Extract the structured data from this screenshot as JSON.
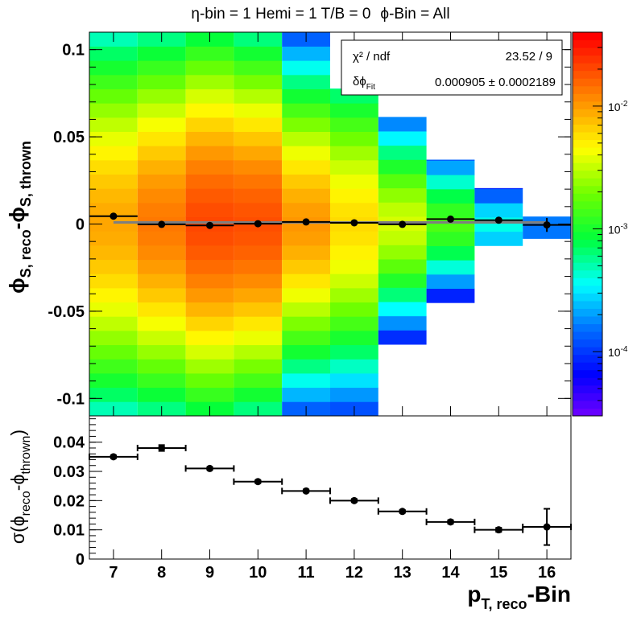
{
  "title": {
    "prefix_eta": "η",
    "text_mid": "-bin = 1 Hemi = 1 T/B = 0",
    "prefix_phi": "ϕ",
    "text_end": "-Bin = All"
  },
  "stats_box": {
    "chi2_label": "χ² / ndf",
    "chi2_value": "23.52 / 9",
    "dphi_label_main": "δϕ",
    "dphi_label_sub": "Fit",
    "dphi_value": "0.000905 ± 0.0002189"
  },
  "top_axis_label": {
    "a_main": "ϕ",
    "a_sub": "S, reco",
    "b_main": "-ϕ",
    "b_sub": "S, thrown"
  },
  "bottom_axis_label": {
    "main": "σ(ϕ",
    "sub1": "reco",
    "mid": "-ϕ",
    "sub2": "thrown",
    "end": ")"
  },
  "x_axis_label": {
    "main": "p",
    "sub": "T, reco",
    "end": "-Bin"
  },
  "chart_data": [
    {
      "type": "heatmap",
      "title": "η-bin = 1 Hemi = 1 T/B = 0  ϕ-Bin = All",
      "x_bins": [
        7,
        8,
        9,
        10,
        11,
        12,
        13,
        14,
        15,
        16
      ],
      "xlim": [
        6.5,
        16.5
      ],
      "ylim": [
        -0.11,
        0.11
      ],
      "yticks": [
        {
          "v": 0.1,
          "label": "0.1"
        },
        {
          "v": 0.05,
          "label": "0.05"
        },
        {
          "v": 0,
          "label": "0"
        },
        {
          "v": -0.05,
          "label": "-0.05"
        },
        {
          "v": -0.1,
          "label": "-0.1"
        }
      ],
      "y_bin_width": 0.00815,
      "z_scale": "log",
      "zlim": [
        3e-05,
        0.04
      ],
      "z_ticks": [
        {
          "v": 0.01,
          "label": "10",
          "exp": "-2"
        },
        {
          "v": 0.001,
          "label": "10",
          "exp": "-3"
        },
        {
          "v": 0.0001,
          "label": "10",
          "exp": "-4"
        }
      ],
      "columns": [
        {
          "x": 7,
          "y_range": [
            -0.11,
            0.11
          ],
          "z_peak": 0.0096,
          "z_min": 0.0004,
          "z_top_override": [
            0.0004,
            0.0002
          ]
        },
        {
          "x": 8,
          "y_range": [
            -0.11,
            0.11
          ],
          "z_peak": 0.0142,
          "z_min": 0.0005
        },
        {
          "x": 9,
          "y_range": [
            -0.11,
            0.11
          ],
          "z_peak": 0.0217,
          "z_min": 0.0007
        },
        {
          "x": 10,
          "y_range": [
            -0.11,
            0.11
          ],
          "z_peak": 0.0204,
          "z_min": 0.0005
        },
        {
          "x": 11,
          "y_range": [
            -0.11,
            0.11
          ],
          "z_peak": 0.011,
          "z_min": 0.0001
        },
        {
          "x": 12,
          "y_range": [
            -0.11,
            0.0777
          ],
          "z_peak": 0.0062,
          "z_min": 9e-05
        },
        {
          "x": 13,
          "y_range": [
            -0.069,
            0.0614
          ],
          "z_peak": 0.0036,
          "z_min": 6e-05
        },
        {
          "x": 14,
          "y_range": [
            -0.0451,
            0.0369
          ],
          "z_peak": 0.0015,
          "z_min": 5e-05
        },
        {
          "x": 15,
          "y_range": [
            -0.0124,
            0.0206
          ],
          "z_peak": 0.00038,
          "z_min": 8e-05
        },
        {
          "x": 16,
          "y_range": [
            -0.0083,
            0.0043
          ],
          "z_peak": 0.00016,
          "z_min": 0.00014
        }
      ],
      "profile_points": [
        {
          "x": 7,
          "y": 0.0045,
          "yerr": 0.0012
        },
        {
          "x": 8,
          "y": -0.0002,
          "yerr": 0.001
        },
        {
          "x": 9,
          "y": -0.0008,
          "yerr": 0.0008
        },
        {
          "x": 10,
          "y": 0.0002,
          "yerr": 0.0008
        },
        {
          "x": 11,
          "y": 0.0012,
          "yerr": 0.0008
        },
        {
          "x": 12,
          "y": 0.0007,
          "yerr": 0.0009
        },
        {
          "x": 13,
          "y": -0.0002,
          "yerr": 0.001
        },
        {
          "x": 14,
          "y": 0.0028,
          "yerr": 0.0012
        },
        {
          "x": 15,
          "y": 0.0022,
          "yerr": 0.0016
        },
        {
          "x": 16,
          "y": -0.0005,
          "yerr": 0.004
        }
      ],
      "fit_line": {
        "x": [
          7,
          16
        ],
        "y": 0.000905,
        "color": "#7f7f7f"
      }
    },
    {
      "type": "scatter",
      "xlim": [
        6.5,
        16.5
      ],
      "ylim": [
        0,
        0.049
      ],
      "xticks": [
        "7",
        "8",
        "9",
        "10",
        "11",
        "12",
        "13",
        "14",
        "15",
        "16"
      ],
      "yticks": [
        {
          "v": 0,
          "label": "0"
        },
        {
          "v": 0.01,
          "label": "0.01"
        },
        {
          "v": 0.02,
          "label": "0.02"
        },
        {
          "v": 0.03,
          "label": "0.03"
        },
        {
          "v": 0.04,
          "label": "0.04"
        }
      ],
      "points": [
        {
          "x": 7,
          "y": 0.035,
          "yerr": 0.0005
        },
        {
          "x": 8,
          "y": 0.038,
          "yerr": 0.001
        },
        {
          "x": 9,
          "y": 0.031,
          "yerr": 0.0005
        },
        {
          "x": 10,
          "y": 0.0265,
          "yerr": 0.0005
        },
        {
          "x": 11,
          "y": 0.0233,
          "yerr": 0.0005
        },
        {
          "x": 12,
          "y": 0.02,
          "yerr": 0.0005
        },
        {
          "x": 13,
          "y": 0.0163,
          "yerr": 0.0005
        },
        {
          "x": 14,
          "y": 0.0127,
          "yerr": 0.0006
        },
        {
          "x": 15,
          "y": 0.01,
          "yerr": 0.0007
        },
        {
          "x": 16,
          "y": 0.011,
          "yerr": 0.0062
        }
      ]
    }
  ]
}
